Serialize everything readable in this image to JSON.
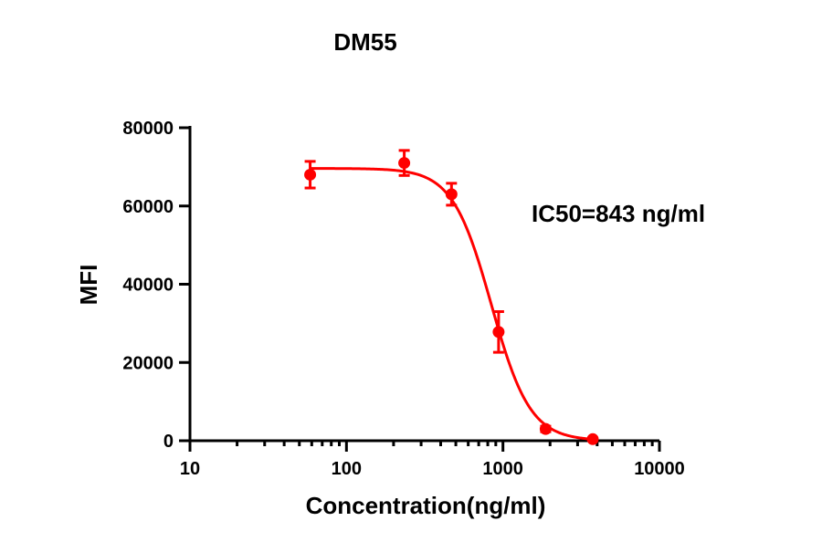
{
  "chart_data": {
    "type": "scatter",
    "title": "DM55",
    "xlabel": "Concentration(ng/ml)",
    "ylabel": "MFI",
    "x_scale": "log",
    "xlim": [
      10,
      10000
    ],
    "ylim": [
      0,
      80000
    ],
    "x_ticks": [
      10,
      100,
      1000,
      10000
    ],
    "x_tick_labels": [
      "10",
      "100",
      "1000",
      "10000"
    ],
    "y_ticks": [
      0,
      20000,
      40000,
      60000,
      80000
    ],
    "y_tick_labels": [
      "0",
      "20000",
      "40000",
      "60000",
      "80000"
    ],
    "color": "#ff0000",
    "series": [
      {
        "points": [
          {
            "x": 58.6,
            "y": 68000,
            "err": 3400
          },
          {
            "x": 234,
            "y": 71000,
            "err": 3200
          },
          {
            "x": 469,
            "y": 63000,
            "err": 2800
          },
          {
            "x": 938,
            "y": 27800,
            "err": 5200
          },
          {
            "x": 1875,
            "y": 3000,
            "err": 700
          },
          {
            "x": 3750,
            "y": 400,
            "err": 300
          }
        ]
      }
    ],
    "fit": {
      "model": "four-parameter logistic",
      "top": 69600,
      "bottom": 0,
      "ic50": 843,
      "hill_slope": 3.5,
      "x_range": [
        58.6,
        3750
      ]
    },
    "annotations": [
      {
        "text": "IC50=843 ng/ml"
      }
    ],
    "grid": false,
    "legend": "none"
  }
}
